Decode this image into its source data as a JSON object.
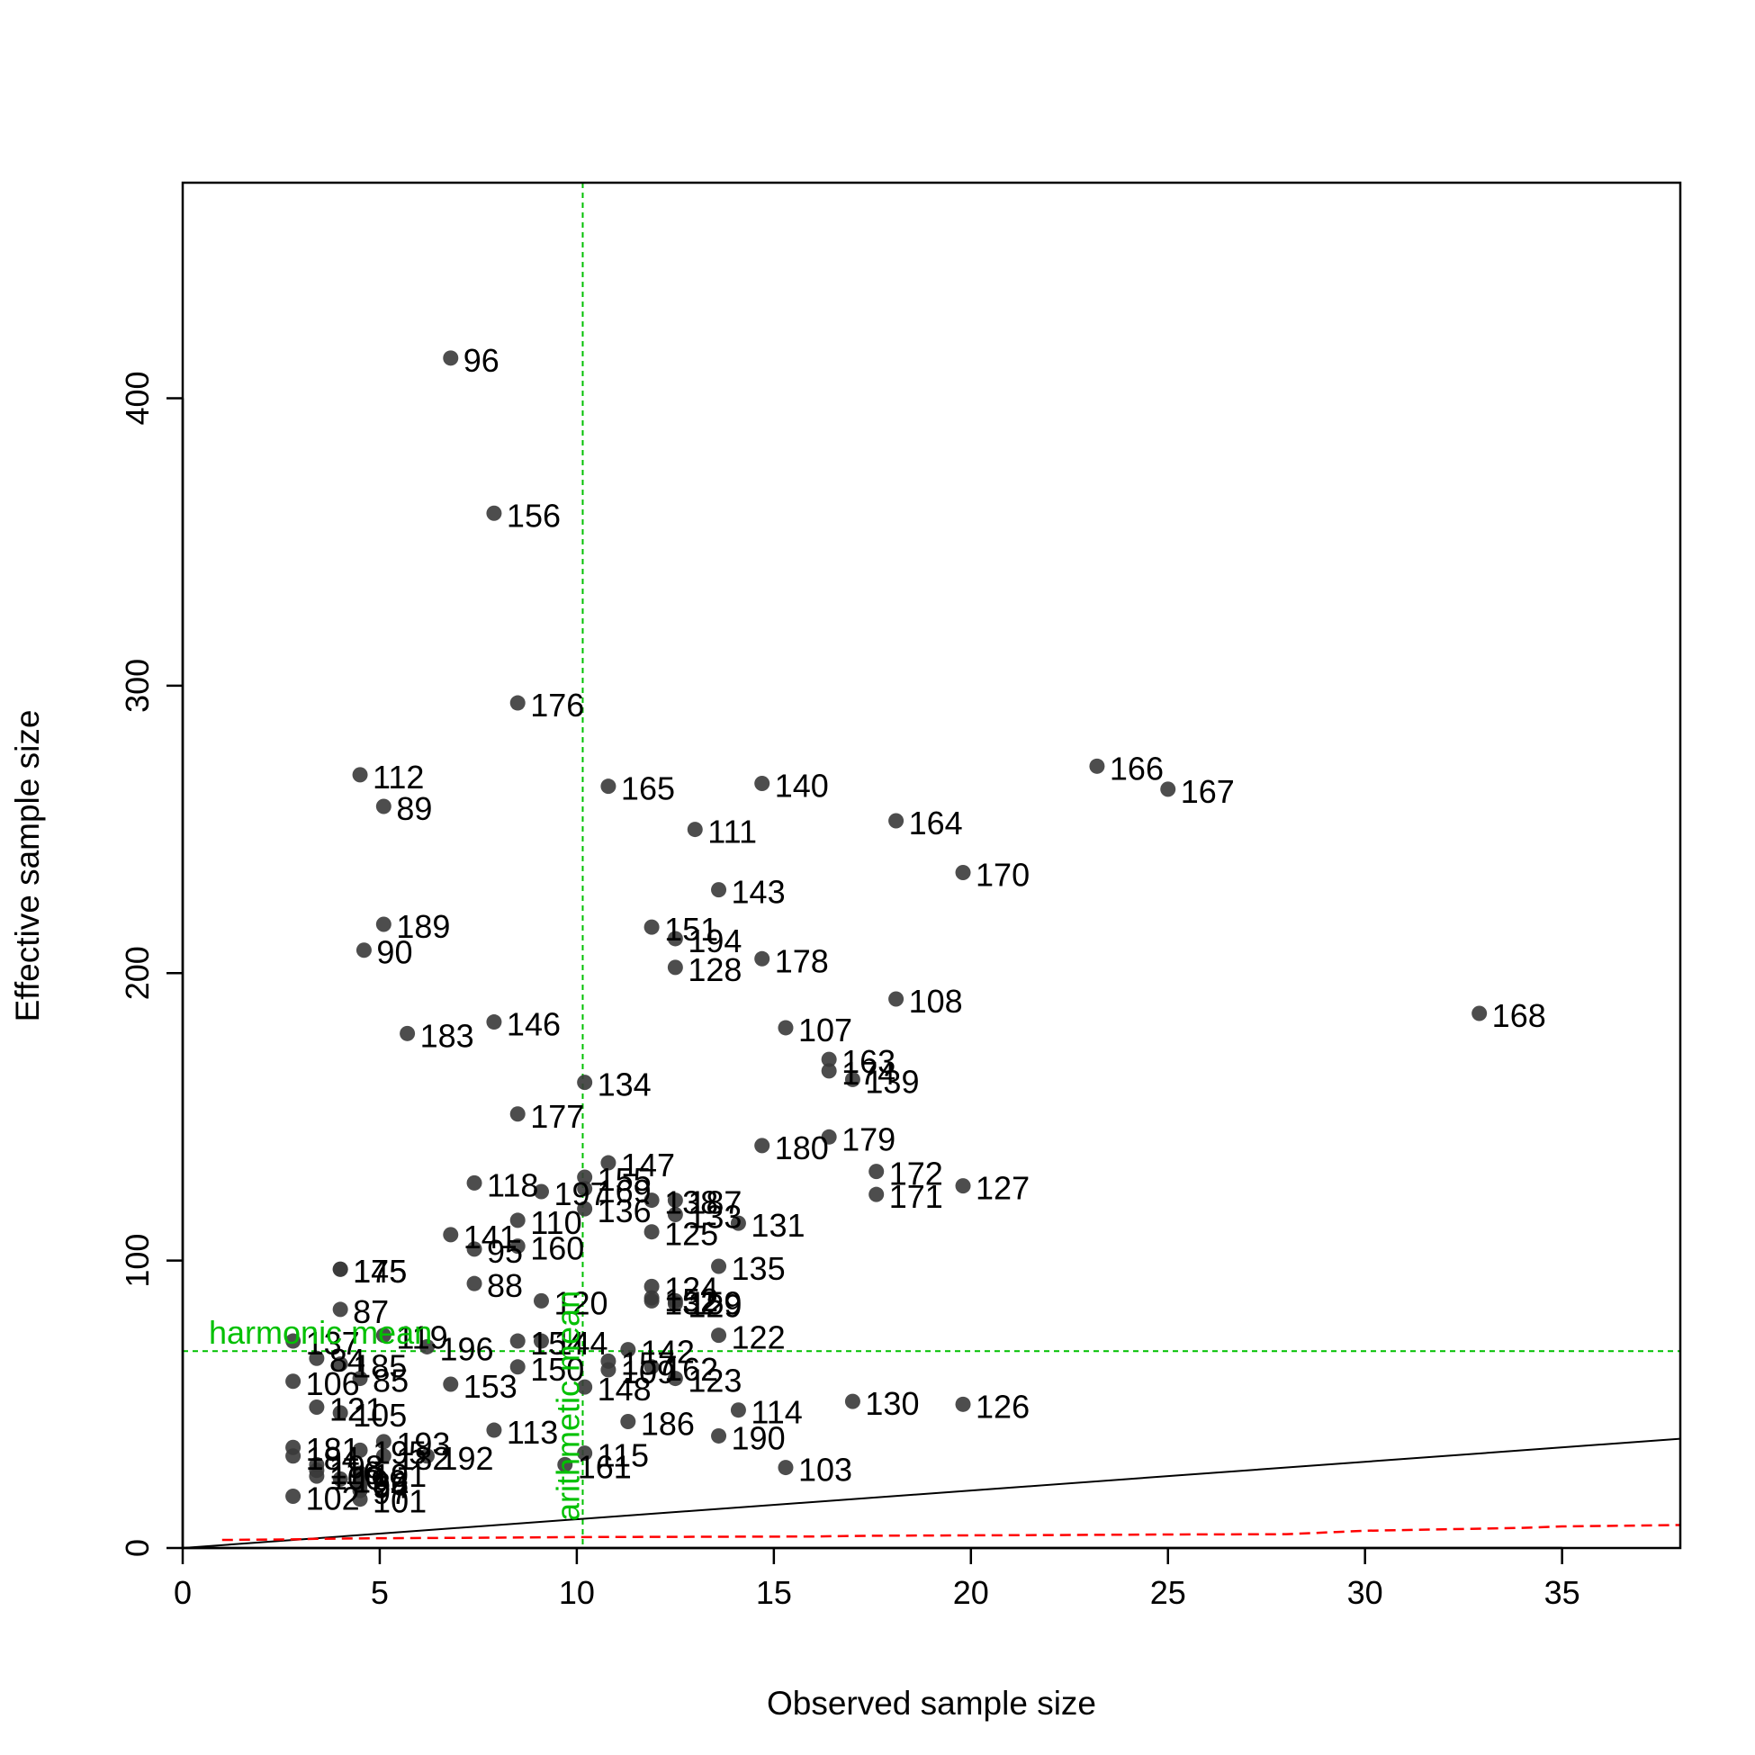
{
  "chart_data": {
    "type": "scatter",
    "title": "",
    "xlabel": "Observed sample size",
    "ylabel": "Effective sample size",
    "xlim": [
      0,
      38
    ],
    "ylim": [
      0,
      475
    ],
    "x_ticks": [
      0,
      5,
      10,
      15,
      20,
      25,
      30,
      35
    ],
    "y_ticks": [
      0,
      100,
      200,
      300,
      400
    ],
    "grid": false,
    "colors": {
      "points": "#3a3a3a",
      "reference": "#00c000",
      "identity_line": "#000000",
      "lower_bound": "#ff0000"
    },
    "points": [
      {
        "label": "96",
        "x": 6.8,
        "y": 414
      },
      {
        "label": "156",
        "x": 7.9,
        "y": 360
      },
      {
        "label": "176",
        "x": 8.5,
        "y": 294
      },
      {
        "label": "112",
        "x": 4.5,
        "y": 269
      },
      {
        "label": "89",
        "x": 5.1,
        "y": 258
      },
      {
        "label": "165",
        "x": 10.8,
        "y": 265
      },
      {
        "label": "140",
        "x": 14.7,
        "y": 266
      },
      {
        "label": "166",
        "x": 23.2,
        "y": 272
      },
      {
        "label": "167",
        "x": 25.0,
        "y": 264
      },
      {
        "label": "111",
        "x": 13.0,
        "y": 250
      },
      {
        "label": "164",
        "x": 18.1,
        "y": 253
      },
      {
        "label": "170",
        "x": 19.8,
        "y": 235
      },
      {
        "label": "143",
        "x": 13.6,
        "y": 229
      },
      {
        "label": "189",
        "x": 5.1,
        "y": 217
      },
      {
        "label": "151",
        "x": 11.9,
        "y": 216
      },
      {
        "label": "194",
        "x": 12.5,
        "y": 212
      },
      {
        "label": "90",
        "x": 4.6,
        "y": 208
      },
      {
        "label": "178",
        "x": 14.7,
        "y": 205
      },
      {
        "label": "128",
        "x": 12.5,
        "y": 202
      },
      {
        "label": "108",
        "x": 18.1,
        "y": 191
      },
      {
        "label": "168",
        "x": 32.9,
        "y": 186
      },
      {
        "label": "146",
        "x": 7.9,
        "y": 183
      },
      {
        "label": "183",
        "x": 5.7,
        "y": 179
      },
      {
        "label": "107",
        "x": 15.3,
        "y": 181
      },
      {
        "label": "163",
        "x": 16.4,
        "y": 170
      },
      {
        "label": "174",
        "x": 16.4,
        "y": 166
      },
      {
        "label": "139",
        "x": 17.0,
        "y": 163
      },
      {
        "label": "134",
        "x": 10.2,
        "y": 162
      },
      {
        "label": "177",
        "x": 8.5,
        "y": 151
      },
      {
        "label": "179",
        "x": 16.4,
        "y": 143
      },
      {
        "label": "180",
        "x": 14.7,
        "y": 140
      },
      {
        "label": "147",
        "x": 10.8,
        "y": 134
      },
      {
        "label": "172",
        "x": 17.6,
        "y": 131
      },
      {
        "label": "155",
        "x": 10.2,
        "y": 129
      },
      {
        "label": "118",
        "x": 7.4,
        "y": 127
      },
      {
        "label": "127",
        "x": 19.8,
        "y": 126
      },
      {
        "label": "169",
        "x": 10.2,
        "y": 125
      },
      {
        "label": "197",
        "x": 9.1,
        "y": 124
      },
      {
        "label": "171",
        "x": 17.6,
        "y": 123
      },
      {
        "label": "138",
        "x": 11.9,
        "y": 121
      },
      {
        "label": "187",
        "x": 12.5,
        "y": 121
      },
      {
        "label": "136",
        "x": 10.2,
        "y": 118
      },
      {
        "label": "133",
        "x": 12.5,
        "y": 116
      },
      {
        "label": "131",
        "x": 14.1,
        "y": 113
      },
      {
        "label": "110",
        "x": 8.5,
        "y": 114
      },
      {
        "label": "125",
        "x": 11.9,
        "y": 110
      },
      {
        "label": "141",
        "x": 6.8,
        "y": 109
      },
      {
        "label": "160",
        "x": 8.5,
        "y": 105
      },
      {
        "label": "95",
        "x": 7.4,
        "y": 104
      },
      {
        "label": "135",
        "x": 13.6,
        "y": 98
      },
      {
        "label": "145",
        "x": 4.0,
        "y": 97
      },
      {
        "label": "175",
        "x": 4.0,
        "y": 97
      },
      {
        "label": "88",
        "x": 7.4,
        "y": 92
      },
      {
        "label": "124",
        "x": 11.9,
        "y": 91
      },
      {
        "label": "152",
        "x": 11.9,
        "y": 87
      },
      {
        "label": "159",
        "x": 12.5,
        "y": 86
      },
      {
        "label": "132",
        "x": 11.9,
        "y": 86
      },
      {
        "label": "129",
        "x": 12.5,
        "y": 85
      },
      {
        "label": "120",
        "x": 9.1,
        "y": 86
      },
      {
        "label": "87",
        "x": 4.0,
        "y": 83
      },
      {
        "label": "122",
        "x": 13.6,
        "y": 74
      },
      {
        "label": "119",
        "x": 5.1,
        "y": 74
      },
      {
        "label": "196",
        "x": 6.2,
        "y": 70
      },
      {
        "label": "137",
        "x": 2.8,
        "y": 72
      },
      {
        "label": "154",
        "x": 8.5,
        "y": 72
      },
      {
        "label": "144",
        "x": 9.1,
        "y": 72
      },
      {
        "label": "142",
        "x": 11.3,
        "y": 69
      },
      {
        "label": "84",
        "x": 3.4,
        "y": 66
      },
      {
        "label": "185",
        "x": 4.0,
        "y": 64
      },
      {
        "label": "150",
        "x": 8.5,
        "y": 63
      },
      {
        "label": "157",
        "x": 10.8,
        "y": 65
      },
      {
        "label": "109",
        "x": 10.8,
        "y": 62
      },
      {
        "label": "162",
        "x": 11.9,
        "y": 63
      },
      {
        "label": "123",
        "x": 12.5,
        "y": 59
      },
      {
        "label": "106",
        "x": 2.8,
        "y": 58
      },
      {
        "label": "85",
        "x": 4.5,
        "y": 59
      },
      {
        "label": "153",
        "x": 6.8,
        "y": 57
      },
      {
        "label": "148",
        "x": 10.2,
        "y": 56
      },
      {
        "label": "130",
        "x": 17.0,
        "y": 51
      },
      {
        "label": "126",
        "x": 19.8,
        "y": 50
      },
      {
        "label": "121",
        "x": 3.4,
        "y": 49
      },
      {
        "label": "114",
        "x": 14.1,
        "y": 48
      },
      {
        "label": "105",
        "x": 4.0,
        "y": 47
      },
      {
        "label": "186",
        "x": 11.3,
        "y": 44
      },
      {
        "label": "113",
        "x": 7.9,
        "y": 41
      },
      {
        "label": "190",
        "x": 13.6,
        "y": 39
      },
      {
        "label": "193",
        "x": 5.1,
        "y": 37
      },
      {
        "label": "181",
        "x": 2.8,
        "y": 35
      },
      {
        "label": "195",
        "x": 4.5,
        "y": 34
      },
      {
        "label": "115",
        "x": 10.2,
        "y": 33
      },
      {
        "label": "182",
        "x": 5.1,
        "y": 32
      },
      {
        "label": "192",
        "x": 6.2,
        "y": 32
      },
      {
        "label": "184",
        "x": 2.8,
        "y": 32
      },
      {
        "label": "198",
        "x": 3.4,
        "y": 29
      },
      {
        "label": "161",
        "x": 9.7,
        "y": 29
      },
      {
        "label": "103",
        "x": 15.3,
        "y": 28
      },
      {
        "label": "116",
        "x": 3.4,
        "y": 27
      },
      {
        "label": "191",
        "x": 4.5,
        "y": 26
      },
      {
        "label": "100",
        "x": 3.4,
        "y": 25
      },
      {
        "label": "199",
        "x": 4.0,
        "y": 24
      },
      {
        "label": "86",
        "x": 4.5,
        "y": 23
      },
      {
        "label": "94",
        "x": 4.5,
        "y": 22
      },
      {
        "label": "97",
        "x": 4.5,
        "y": 20
      },
      {
        "label": "102",
        "x": 2.8,
        "y": 18
      },
      {
        "label": "101",
        "x": 4.5,
        "y": 17
      }
    ],
    "reference_lines": {
      "harmonic_mean": {
        "label": "harmonic mean",
        "y": 68.5
      },
      "arithmetic_mean": {
        "label": "arithmetic mean",
        "x": 10.15
      }
    },
    "identity_line": {
      "from": [
        0,
        0
      ],
      "to": [
        38,
        38
      ]
    },
    "lower_bound_curve": {
      "x": [
        1,
        2.8,
        3.4,
        5,
        8,
        10,
        13,
        16,
        17,
        18,
        20,
        22,
        25,
        28,
        30,
        32,
        34,
        35,
        38
      ],
      "y": [
        2.8,
        3.0,
        3.2,
        3.4,
        3.6,
        3.8,
        3.9,
        4.0,
        4.2,
        4.3,
        4.4,
        4.5,
        4.7,
        4.8,
        6.0,
        6.5,
        7.0,
        7.5,
        8.0
      ]
    }
  }
}
